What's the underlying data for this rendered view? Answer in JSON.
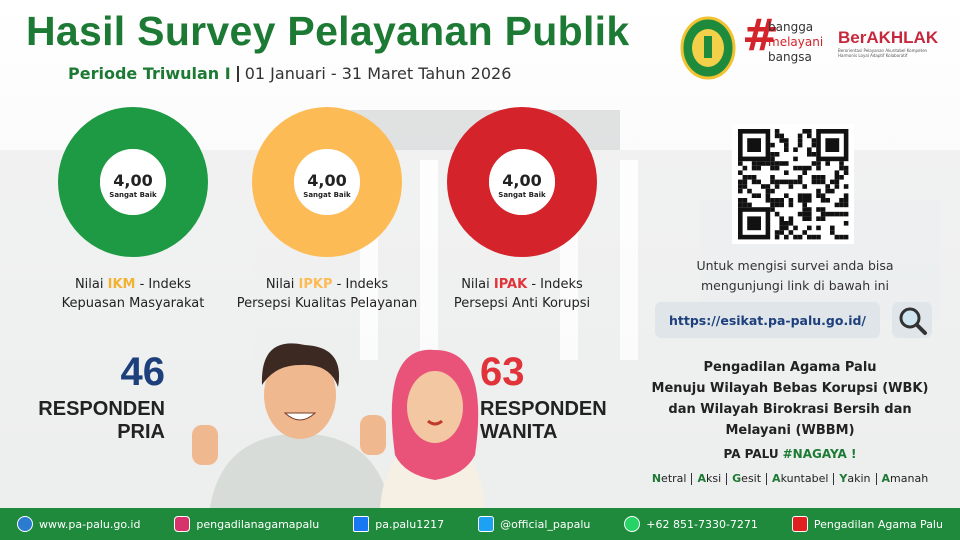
{
  "header": {
    "title": "Hasil Survey Pelayanan Publik",
    "period_label": "Periode Triwulan I",
    "period_dates": "01 Januari - 31 Maret Tahun 2026"
  },
  "logos": {
    "hashtag": "#",
    "tagline": [
      "bangga",
      "melayani",
      "bangsa"
    ],
    "berakhlak": "BerAKHLAK",
    "berakhlak_sub": "Berorientasi Pelayanan Akuntabel Kompeten Harmonis Loyal Adaptif Kolaboratif"
  },
  "indices": [
    {
      "score": "4,00",
      "rating": "Sangat Baik",
      "prefix": "Nilai",
      "code": "IKM",
      "suffix": "- Indeks",
      "name": "Kepuasan Masyarakat",
      "color": "#1e9a45",
      "code_color": "#f2b233"
    },
    {
      "score": "4,00",
      "rating": "Sangat Baik",
      "prefix": "Nilai",
      "code": "IPKP",
      "suffix": "- Indeks",
      "name": "Persepsi Kualitas Pelayanan",
      "color": "#fdbb55",
      "code_color": "#fdbb55"
    },
    {
      "score": "4,00",
      "rating": "Sangat Baik",
      "prefix": "Nilai",
      "code": "IPAK",
      "suffix": "- Indeks",
      "name": "Persepsi Anti Korupsi",
      "color": "#d4232a",
      "code_color": "#e0343a"
    }
  ],
  "respondents": [
    {
      "count": "46",
      "label": "RESPONDEN",
      "group": "PRIA",
      "color": "#1d3f7c"
    },
    {
      "count": "63",
      "label": "RESPONDEN",
      "group": "WANITA",
      "color": "#e0343a"
    }
  ],
  "survey": {
    "instruction": [
      "Untuk mengisi survei anda bisa",
      "mengunjungi link di bawah ini"
    ],
    "link": "https://esikat.pa-palu.go.id/"
  },
  "statement": {
    "lines": [
      "Pengadilan Agama Palu",
      "Menuju Wilayah Bebas Korupsi (WBK)",
      "dan Wilayah Birokrasi Bersih dan",
      "Melayani (WBBM)"
    ],
    "tagline": "PA PALU",
    "hashtag": "#NAGAYA !",
    "values": [
      "Netral",
      "Aksi",
      "Gesit",
      "Akuntabel",
      "Yakin",
      "Amanah"
    ]
  },
  "footer": [
    "www.pa-palu.go.id",
    "pengadilanagamapalu",
    "pa.palu1217",
    "@official_papalu",
    "+62 851-7330-7271",
    "Pengadilan Agama Palu"
  ]
}
